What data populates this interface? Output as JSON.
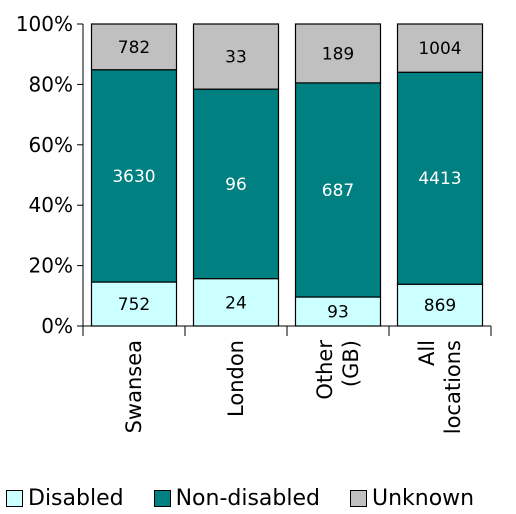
{
  "chart_data": {
    "type": "bar",
    "stacked": "percent",
    "categories": [
      "Swansea",
      "London",
      "Other (GB)",
      "All locations"
    ],
    "series": [
      {
        "name": "Disabled",
        "values": [
          752,
          24,
          93,
          869
        ],
        "color": "#ccffff"
      },
      {
        "name": "Non-disabled",
        "values": [
          3630,
          96,
          687,
          4413
        ],
        "color": "#008080"
      },
      {
        "name": "Unknown",
        "values": [
          782,
          33,
          189,
          1004
        ],
        "color": "#c0c0c0"
      }
    ],
    "y_ticks": [
      "0%",
      "20%",
      "40%",
      "60%",
      "80%",
      "100%"
    ],
    "ylim": [
      0,
      100
    ],
    "grid": false,
    "legend_position": "bottom"
  }
}
